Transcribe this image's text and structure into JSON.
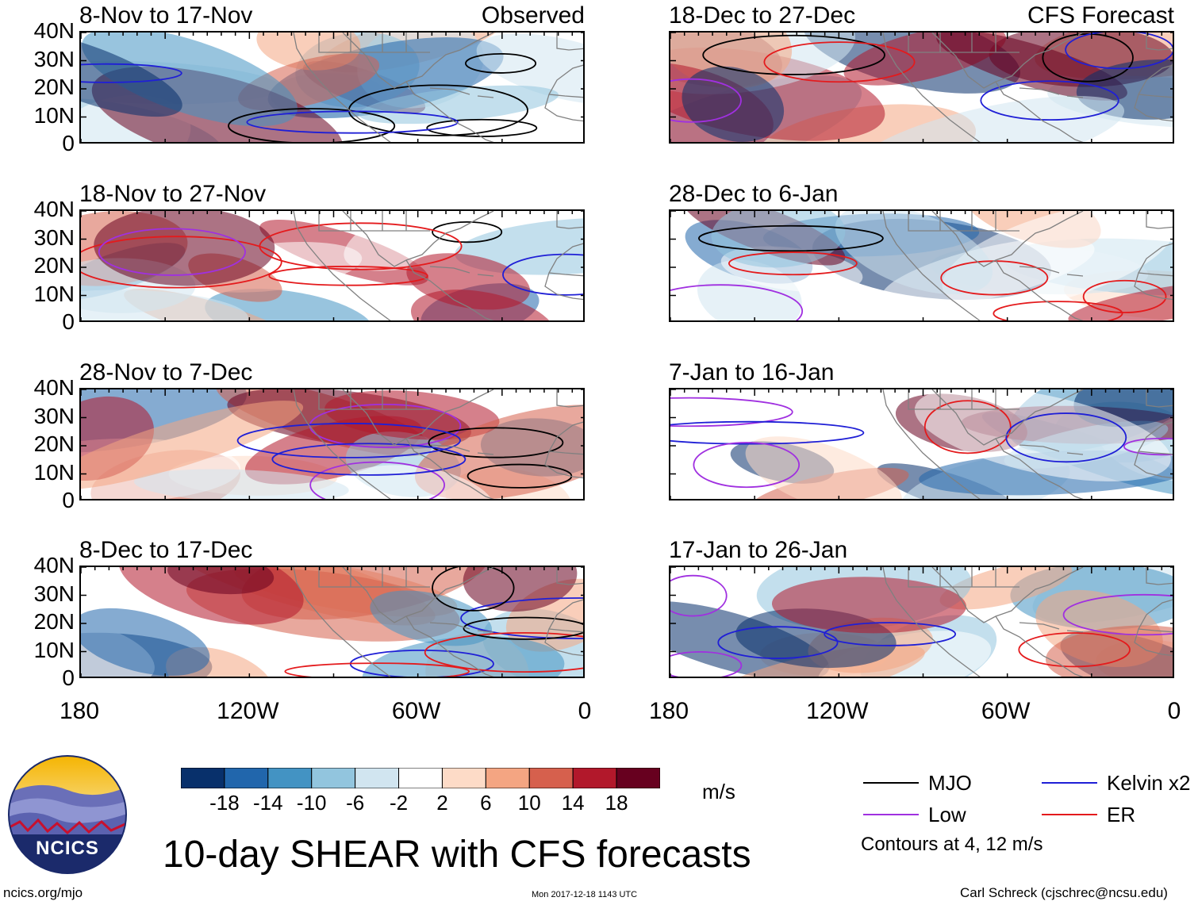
{
  "chart_data": {
    "type": "heatmap",
    "title": "10-day SHEAR with CFS forecasts",
    "units": "m/s",
    "columns": [
      {
        "tag": "Observed",
        "panels": [
          "8-Nov to 17-Nov",
          "18-Nov to 27-Nov",
          "28-Nov to 7-Dec",
          "8-Dec to 17-Dec"
        ]
      },
      {
        "tag": "CFS Forecast",
        "panels": [
          "18-Dec to 27-Dec",
          "28-Dec to 6-Jan",
          "7-Jan to 16-Jan",
          "17-Jan to 26-Jan"
        ]
      }
    ],
    "lat_ticks": [
      "40N",
      "30N",
      "20N",
      "10N",
      "0"
    ],
    "lon_ticks": [
      "180",
      "120W",
      "60W",
      "0"
    ],
    "colorbar": {
      "labels": [
        "-18",
        "-14",
        "-10",
        "-6",
        "-2",
        "2",
        "6",
        "10",
        "14",
        "18"
      ],
      "colors": [
        "#08306b",
        "#2166ac",
        "#4393c3",
        "#92c5de",
        "#d1e5f0",
        "#ffffff",
        "#fddbc7",
        "#f4a582",
        "#d6604d",
        "#b2182b",
        "#67001f"
      ]
    },
    "legend": [
      {
        "label": "MJO",
        "color": "#000000"
      },
      {
        "label": "Kelvin x2",
        "color": "#1f1fd6"
      },
      {
        "label": "Low",
        "color": "#a030e0"
      },
      {
        "label": "ER",
        "color": "#e41a1c"
      }
    ],
    "contour_note": "Contours at 4, 12 m/s"
  },
  "footer": {
    "logo_text": "NCICS",
    "site": "ncics.org/mjo",
    "timestamp": "Mon 2017-12-18 1143 UTC",
    "author": "Carl Schreck (cjschrec@ncsu.edu)"
  },
  "colors": {
    "background": "#ffffff",
    "land": "#808080"
  }
}
